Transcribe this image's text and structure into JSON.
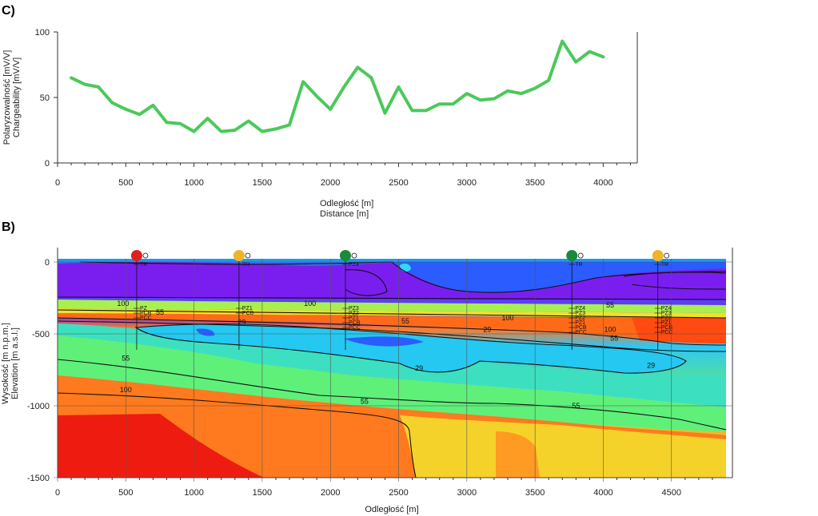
{
  "panel_c": {
    "letter": "C)",
    "ylabel_pl": "Polaryzowalność [mV/V]",
    "ylabel_en": "Chargeability [mV/V]",
    "xlabel_pl": "Odległość [m]",
    "xlabel_en": "Distance [m]"
  },
  "panel_b": {
    "letter": "B)",
    "ylabel_pl": "Wysokość [m n.p.m.]",
    "ylabel_en": "Elevation [m a.s.l.]",
    "xlabel": "Odległość [m]"
  },
  "colors": {
    "line": "#4bc95a",
    "axis": "#333333"
  },
  "chart_data": [
    {
      "type": "line",
      "panel": "C",
      "xlim": [
        0,
        4250
      ],
      "ylim": [
        0,
        100
      ],
      "xticks": [
        0,
        500,
        1000,
        1500,
        2000,
        2500,
        3000,
        3500,
        4000
      ],
      "yticks": [
        0,
        50,
        100
      ],
      "series": [
        {
          "x": [
            100,
            200,
            300,
            400,
            500,
            600,
            700,
            800,
            900,
            1000,
            1100,
            1200,
            1300,
            1400,
            1500,
            1600,
            1700,
            1800,
            1900,
            2000,
            2100,
            2200,
            2300,
            2400,
            2500,
            2600,
            2700,
            2800,
            2900,
            3000,
            3100,
            3200,
            3300,
            3400,
            3500,
            3600,
            3700,
            3800,
            3900,
            4000
          ],
          "y": [
            65,
            60,
            58,
            46,
            41,
            37,
            44,
            31,
            30,
            24,
            34,
            24,
            25,
            32,
            24,
            26,
            29,
            62,
            51,
            41,
            58,
            73,
            65,
            38,
            58,
            40,
            40,
            45,
            45,
            53,
            48,
            49,
            55,
            53,
            57,
            63,
            93,
            77,
            85,
            81
          ]
        }
      ]
    },
    {
      "type": "heatmap",
      "panel": "B",
      "xlim": [
        0,
        4900
      ],
      "ylim": [
        -1500,
        100
      ],
      "xticks": [
        0,
        500,
        1000,
        1500,
        2000,
        2500,
        3000,
        3500,
        4000,
        4500
      ],
      "yticks": [
        -1500,
        -1000,
        -500,
        0
      ],
      "contour_levels": [
        29,
        55,
        100
      ],
      "contour_labels": [
        {
          "x": 480,
          "y": -290,
          "text": "100"
        },
        {
          "x": 750,
          "y": -350,
          "text": "55"
        },
        {
          "x": 1350,
          "y": -420,
          "text": "29"
        },
        {
          "x": 1850,
          "y": -290,
          "text": "100"
        },
        {
          "x": 2550,
          "y": -410,
          "text": "55"
        },
        {
          "x": 3150,
          "y": -470,
          "text": "29"
        },
        {
          "x": 3300,
          "y": -390,
          "text": "100"
        },
        {
          "x": 2650,
          "y": -740,
          "text": "29"
        },
        {
          "x": 4050,
          "y": -470,
          "text": "100"
        },
        {
          "x": 4080,
          "y": -530,
          "text": "55"
        },
        {
          "x": 4350,
          "y": -720,
          "text": "29"
        },
        {
          "x": 4050,
          "y": -300,
          "text": "55"
        },
        {
          "x": 500,
          "y": -670,
          "text": "55"
        },
        {
          "x": 500,
          "y": -890,
          "text": "100"
        },
        {
          "x": 2250,
          "y": -970,
          "text": "55"
        },
        {
          "x": 3800,
          "y": -1000,
          "text": "55"
        }
      ],
      "wells": [
        {
          "x": 580,
          "color": "#e02020",
          "labels": [
            "TR",
            "PZ",
            "PCB",
            "PCC"
          ]
        },
        {
          "x": 1330,
          "color": "#f0b428",
          "labels": [
            "TR",
            "PZ1",
            "PCB"
          ]
        },
        {
          "x": 2110,
          "color": "#1a8a3a",
          "labels": [
            "PZ4",
            "PZ3",
            "PZ2",
            "PZ1",
            "PCB",
            "PCC"
          ]
        },
        {
          "x": 3770,
          "color": "#1a8a3a",
          "labels": [
            "TR",
            "PZ4",
            "PZ3",
            "PZ2",
            "PZ1",
            "PCB",
            "PCC"
          ]
        },
        {
          "x": 4400,
          "color": "#f0b428",
          "labels": [
            "TR",
            "PZ4",
            "PZ3",
            "PZ2",
            "PZ1",
            "PCB",
            "PCC"
          ]
        }
      ]
    }
  ]
}
